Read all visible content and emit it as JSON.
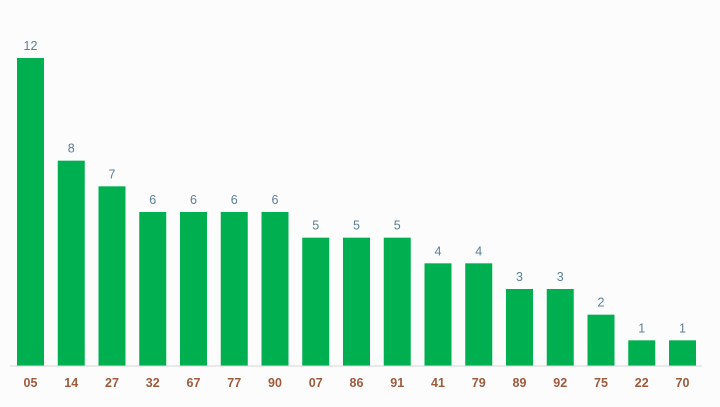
{
  "chart_data": {
    "type": "bar",
    "categories": [
      "05",
      "14",
      "27",
      "32",
      "67",
      "77",
      "90",
      "07",
      "86",
      "91",
      "41",
      "79",
      "89",
      "92",
      "75",
      "22",
      "70"
    ],
    "values": [
      12,
      8,
      7,
      6,
      6,
      6,
      6,
      5,
      5,
      5,
      4,
      4,
      3,
      3,
      2,
      1,
      1
    ],
    "title": "",
    "xlabel": "",
    "ylabel": "",
    "ylim": [
      0,
      12
    ],
    "grid": false,
    "legend": "none",
    "data_labels": true
  },
  "colors": {
    "bar": "#00b050",
    "value_label": "#5b7f95",
    "category_label": "#9e5a3c",
    "baseline": "#d6d6d6",
    "background": "#fcfcfc"
  }
}
